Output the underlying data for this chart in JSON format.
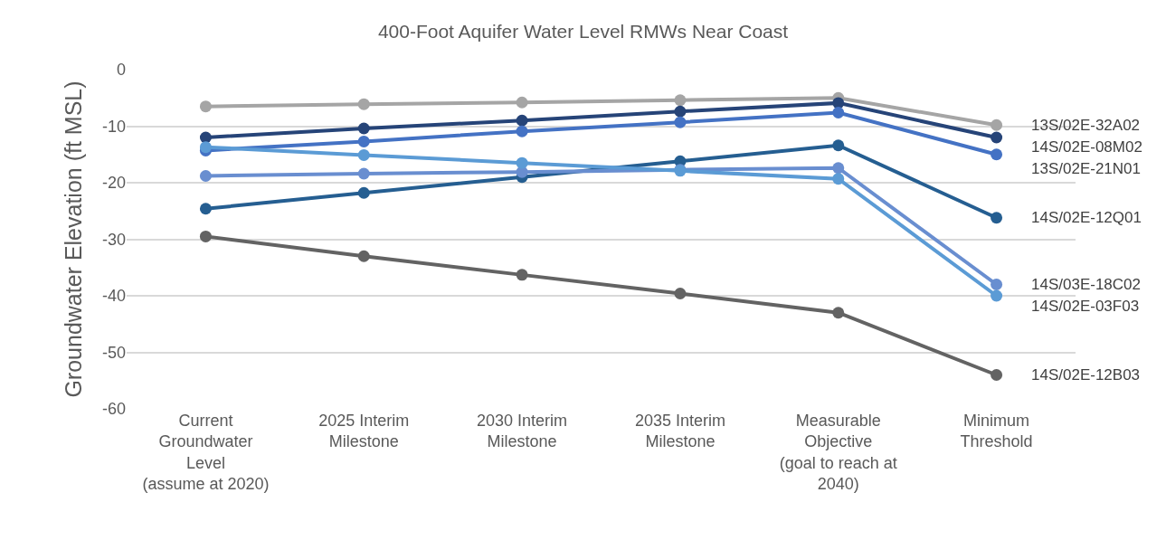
{
  "chart_data": {
    "type": "line",
    "title": "400-Foot Aquifer Water Level RMWs Near Coast",
    "ylabel": "Groundwater Elevation (ft MSL)",
    "categories": [
      "Current\nGroundwater\nLevel\n(assume at 2020)",
      "2025 Interim\nMilestone",
      "2030 Interim\nMilestone",
      "2035 Interim\nMilestone",
      "Measurable\nObjective\n(goal to reach at\n2040)",
      "Minimum\nThreshold"
    ],
    "series": [
      {
        "name": "13S/02E-32A02",
        "color": "#a5a5a5",
        "values": [
          -6.5,
          -6.1,
          -5.8,
          -5.4,
          -5.0,
          -9.8
        ]
      },
      {
        "name": "14S/02E-08M02",
        "color": "#264478",
        "values": [
          -12.0,
          -10.4,
          -9.0,
          -7.4,
          -5.9,
          -12.0
        ]
      },
      {
        "name": "13S/02E-21N01",
        "color": "#4472c4",
        "values": [
          -14.3,
          -12.7,
          -10.9,
          -9.3,
          -7.6,
          -15.0
        ]
      },
      {
        "name": "14S/02E-12Q01",
        "color": "#255e91",
        "values": [
          -24.6,
          -21.8,
          -19.0,
          -16.2,
          -13.4,
          -26.2
        ]
      },
      {
        "name": "14S/03E-18C02",
        "color": "#698ed0",
        "values": [
          -18.8,
          -18.4,
          -18.1,
          -17.7,
          -17.4,
          -38.0
        ]
      },
      {
        "name": "14S/02E-03F03",
        "color": "#5b9bd5",
        "values": [
          -13.7,
          -15.1,
          -16.5,
          -17.9,
          -19.3,
          -40.0
        ]
      },
      {
        "name": "14S/02E-12B03",
        "color": "#636363",
        "values": [
          -29.5,
          -33.0,
          -36.3,
          -39.6,
          -43.0,
          -54.0
        ]
      }
    ],
    "ylim": [
      -60,
      0
    ],
    "yticks": [
      -60,
      -50,
      -40,
      -30,
      -20,
      -10,
      0
    ],
    "grid": "y",
    "marker": "circle",
    "line_style": "solid",
    "legend": false
  }
}
